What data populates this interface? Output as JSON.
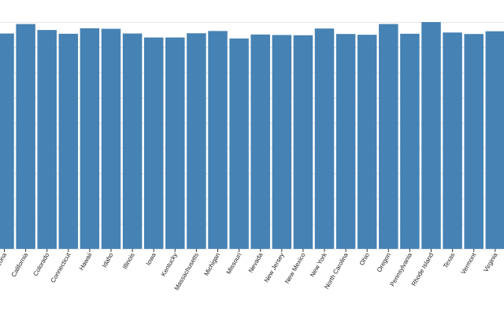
{
  "chart_data": {
    "type": "bar",
    "title": "",
    "xlabel": "",
    "ylabel": "",
    "categories": [
      "Arizona",
      "California",
      "Colorado",
      "Connecticut",
      "Hawaii",
      "Idaho",
      "Illinois",
      "Iowa",
      "Kentucky",
      "Massachusetts",
      "Michigan",
      "Missouri",
      "Nevada",
      "New Jersey",
      "New Mexico",
      "New York",
      "North Carolina",
      "Ohio",
      "Oregon",
      "Pennsylvania",
      "Rhode Island",
      "Texas",
      "Vermont",
      "Virginia"
    ],
    "values": [
      86.5,
      90.3,
      87.9,
      86.4,
      88.6,
      88.4,
      86.5,
      84.9,
      84.9,
      86.6,
      87.5,
      84.5,
      86.1,
      85.9,
      85.8,
      88.5,
      86.3,
      86.0,
      90.3,
      86.4,
      91.1,
      86.9,
      86.3,
      87.4
    ],
    "grid": true,
    "legend": "none",
    "colors": {
      "bar": "#4682b4",
      "grid": "#e6e6e6",
      "axis_text": "#222222"
    }
  }
}
